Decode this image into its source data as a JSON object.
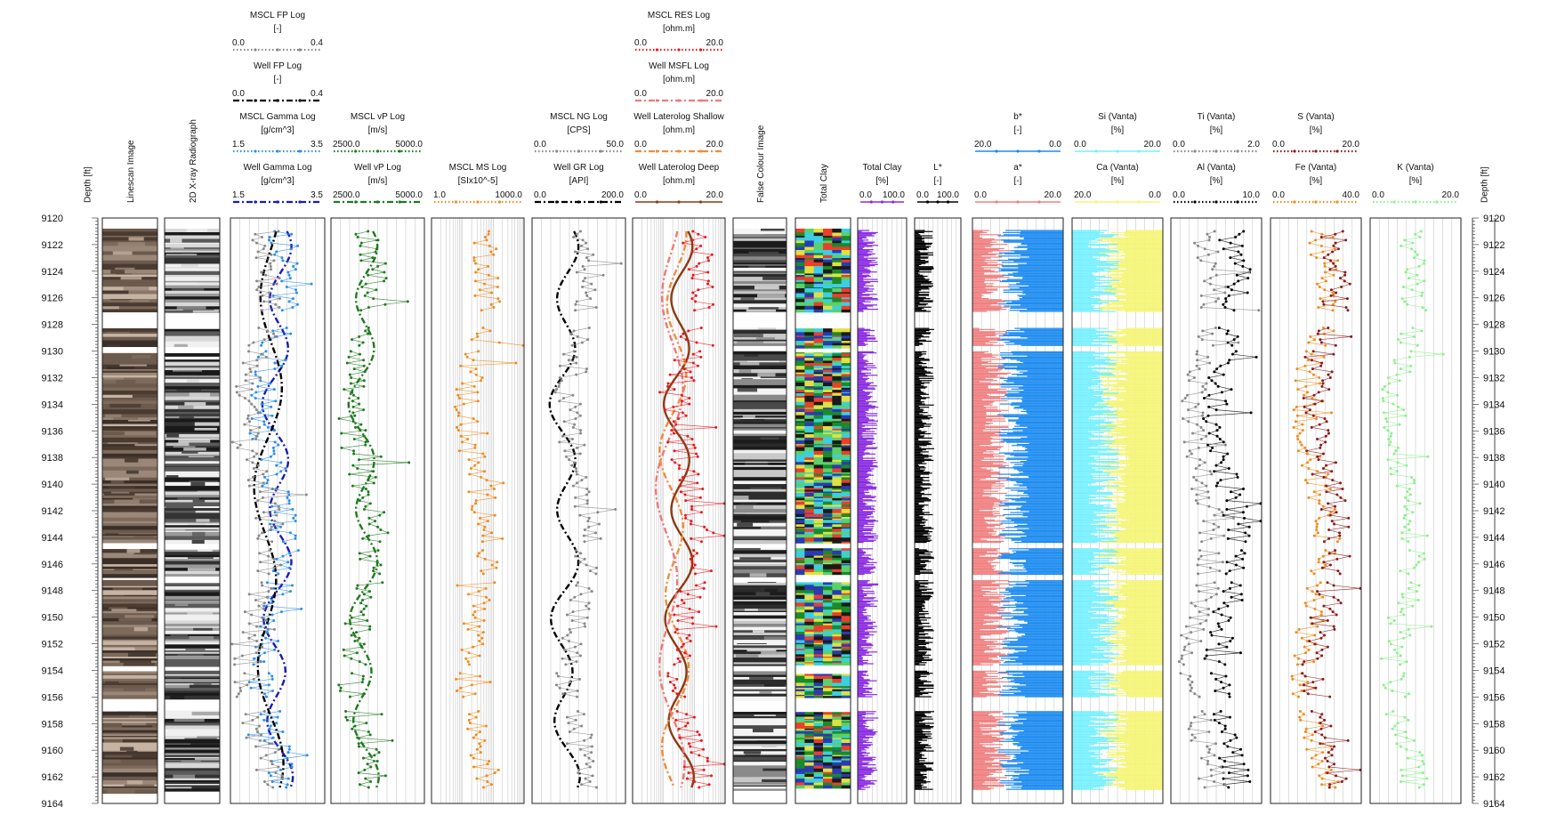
{
  "chart_data": {
    "type": "line",
    "depth_axis": {
      "label": "Depth [ft]",
      "range": [
        9120,
        9164
      ],
      "ticks": [
        9120,
        9122,
        9124,
        9126,
        9128,
        9130,
        9132,
        9134,
        9136,
        9138,
        9140,
        9142,
        9144,
        9146,
        9148,
        9150,
        9152,
        9154,
        9156,
        9158,
        9160,
        9162,
        9164
      ],
      "reversed": true
    },
    "gaps": [
      [
        9127.0,
        9128.2
      ],
      [
        9129.6,
        9130.0
      ],
      [
        9144.4,
        9144.8
      ],
      [
        9146.8,
        9147.2
      ],
      [
        9153.6,
        9154.0
      ],
      [
        9156.0,
        9157.0
      ]
    ],
    "tracks": [
      {
        "title": "Depth [ft]",
        "kind": "depth"
      },
      {
        "title": "Linescan Image",
        "kind": "image_core",
        "image": "linescan"
      },
      {
        "title": "2D X-ray Radiograph",
        "kind": "image_core",
        "image": "xray"
      },
      {
        "kind": "curves",
        "headers": [
          {
            "name": "Well Gamma Log",
            "unit": "[g/cm^3]",
            "min": "1.5",
            "max": "3.5",
            "color": "#1a1ab8",
            "style": "dashdot"
          },
          {
            "name": "MSCL Gamma Log",
            "unit": "[g/cm^3]",
            "min": "1.5",
            "max": "3.5",
            "color": "#2d8ee8",
            "style": "dots"
          },
          {
            "name": "Well FP Log",
            "unit": "[-]",
            "min": "0.0",
            "max": "0.4",
            "color": "#000000",
            "style": "dashdot"
          },
          {
            "name": "MSCL FP Log",
            "unit": "[-]",
            "min": "0.0",
            "max": "0.4",
            "color": "#888888",
            "style": "dots"
          }
        ]
      },
      {
        "kind": "curves",
        "headers": [
          {
            "name": "Well vP Log",
            "unit": "[m/s]",
            "min": "2500.0",
            "max": "5000.0",
            "color": "#1f7a1f",
            "style": "dashdot"
          },
          {
            "name": "MSCL vP Log",
            "unit": "[m/s]",
            "min": "2500.0",
            "max": "5000.0",
            "color": "#1f7a1f",
            "style": "dots"
          }
        ]
      },
      {
        "kind": "curves",
        "log": true,
        "headers": [
          {
            "name": "MSCL MS Log",
            "unit": "[SIx10^-5]",
            "min": "1.0",
            "max": "1000.0",
            "color": "#f08c1e",
            "style": "dots"
          }
        ]
      },
      {
        "kind": "curves",
        "headers": [
          {
            "name": "Well GR Log",
            "unit": "[API]",
            "min": "0.0",
            "max": "200.0",
            "color": "#000000",
            "style": "dashdot"
          },
          {
            "name": "MSCL NG Log",
            "unit": "[CPS]",
            "min": "0.0",
            "max": "50.0",
            "color": "#888888",
            "style": "dots"
          }
        ]
      },
      {
        "kind": "curves",
        "log": true,
        "headers": [
          {
            "name": "Well Laterolog Deep",
            "unit": "[ohm.m]",
            "min": "0.0",
            "max": "20.0",
            "color": "#8b3a12",
            "style": "solid"
          },
          {
            "name": "Well Laterolog Shallow",
            "unit": "[ohm.m]",
            "min": "0.0",
            "max": "20.0",
            "color": "#f08c3c",
            "style": "dashdot"
          },
          {
            "name": "Well MSFL Log",
            "unit": "[ohm.m]",
            "min": "0.0",
            "max": "20.0",
            "color": "#f07878",
            "style": "dashdot"
          },
          {
            "name": "MSCL RES Log",
            "unit": "[ohm.m]",
            "min": "0.0",
            "max": "20.0",
            "color": "#e8191e",
            "style": "dots"
          }
        ]
      },
      {
        "title": "False Colour Image",
        "kind": "image_core",
        "image": "false"
      },
      {
        "title": "Total Clay",
        "kind": "image_clay",
        "image": "clay"
      },
      {
        "kind": "fill",
        "headers": [
          {
            "name": "Total Clay",
            "unit": "[%]",
            "min": "0.0",
            "max": "100.0",
            "color": "#8a2be2",
            "style": "fill"
          }
        ]
      },
      {
        "kind": "fill",
        "headers": [
          {
            "name": "L*",
            "unit": "[-]",
            "min": "0.0",
            "max": "100.0",
            "color": "#000000",
            "style": "fill"
          }
        ]
      },
      {
        "kind": "fill",
        "headers": [
          {
            "name": "a*",
            "unit": "[-]",
            "min": "0.0",
            "max": "20.0",
            "color": "#f08080",
            "style": "fill"
          },
          {
            "name": "b*",
            "unit": "[-]",
            "min": "20.0",
            "max": "0.0",
            "color": "#1e8cf0",
            "style": "fill"
          }
        ]
      },
      {
        "kind": "fill",
        "headers": [
          {
            "name": "Ca (Vanta)",
            "unit": "[%]",
            "min": "20.0",
            "max": "0.0",
            "color": "#f5f578",
            "style": "fill"
          },
          {
            "name": "Si (Vanta)",
            "unit": "[%]",
            "min": "0.0",
            "max": "20.0",
            "color": "#78f0ff",
            "style": "fill"
          }
        ]
      },
      {
        "kind": "curves",
        "headers": [
          {
            "name": "Al (Vanta)",
            "unit": "[%]",
            "min": "0.0",
            "max": "10.0",
            "color": "#000000",
            "style": "dots"
          },
          {
            "name": "Ti (Vanta)",
            "unit": "[%]",
            "min": "0.0",
            "max": "2.0",
            "color": "#888888",
            "style": "dots"
          }
        ]
      },
      {
        "kind": "curves",
        "headers": [
          {
            "name": "Fe (Vanta)",
            "unit": "[%]",
            "min": "0.0",
            "max": "40.0",
            "color": "#f08c1e",
            "style": "dots"
          },
          {
            "name": "S (Vanta)",
            "unit": "[%]",
            "min": "0.0",
            "max": "20.0",
            "color": "#8b1a1a",
            "style": "dots"
          }
        ]
      },
      {
        "kind": "curves",
        "headers": [
          {
            "name": "K (Vanta)",
            "unit": "[%]",
            "min": "0.0",
            "max": "20.0",
            "color": "#8ef08e",
            "style": "dots"
          }
        ]
      },
      {
        "title": "Depth [ft]",
        "kind": "depth"
      }
    ]
  }
}
